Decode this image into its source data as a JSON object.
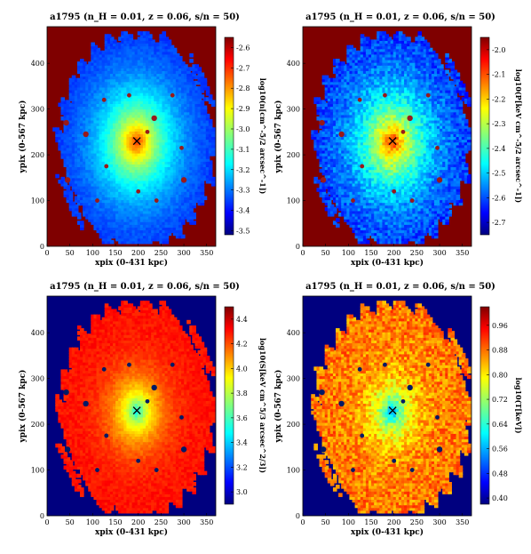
{
  "chart_data": [
    {
      "type": "heatmap",
      "panel": "density",
      "title": "a1795 (n_H = 0.01, z = 0.06, s/n = 50)",
      "xlabel": "xpix (0-431 kpc)",
      "ylabel": "ypix (0-567 kpc)",
      "colorbar_label": "log10(n[cm^-5/2 arcsec^-1])",
      "xlim": [
        0,
        370
      ],
      "ylim": [
        0,
        480
      ],
      "x_ticks": [
        "0",
        "50",
        "100",
        "150",
        "200",
        "250",
        "300",
        "350"
      ],
      "y_ticks": [
        "0",
        "100",
        "200",
        "300",
        "400"
      ],
      "colorbar_range": [
        -3.52,
        -2.55
      ],
      "colorbar_ticks": [
        "-2.6",
        "-2.7",
        "-2.8",
        "-2.9",
        "-3.0",
        "-3.1",
        "-3.2",
        "-3.3",
        "-3.4",
        "-3.5"
      ],
      "center_marker": [
        197,
        230
      ],
      "profile": "peaked",
      "background_color": "#7f0000",
      "point_color": "#991a1a",
      "grid": false
    },
    {
      "type": "heatmap",
      "panel": "pressure",
      "title": "a1795 (n_H = 0.01, z = 0.06, s/n = 50)",
      "xlabel": "xpix (0-431 kpc)",
      "ylabel": "ypix (0-567 kpc)",
      "colorbar_label": "log10(P[keV cm^-5/2 arcsec^-1])",
      "xlim": [
        0,
        370
      ],
      "ylim": [
        0,
        480
      ],
      "x_ticks": [
        "0",
        "50",
        "100",
        "150",
        "200",
        "250",
        "300",
        "350"
      ],
      "y_ticks": [
        "0",
        "100",
        "200",
        "300",
        "400"
      ],
      "colorbar_range": [
        -2.75,
        -1.95
      ],
      "colorbar_ticks": [
        "-2.0",
        "-2.1",
        "-2.2",
        "-2.3",
        "-2.4",
        "-2.5",
        "-2.6",
        "-2.7"
      ],
      "center_marker": [
        197,
        230
      ],
      "profile": "peaked",
      "background_color": "#7f0000",
      "point_color": "#991a1a",
      "grid": false
    },
    {
      "type": "heatmap",
      "panel": "entropy",
      "title": "a1795 (n_H = 0.01, z = 0.06, s/n = 50)",
      "xlabel": "xpix (0-431 kpc)",
      "ylabel": "ypix (0-567 kpc)",
      "colorbar_label": "log10(S[keV cm^5/3 arcsec^2/3])",
      "xlim": [
        0,
        370
      ],
      "ylim": [
        0,
        480
      ],
      "x_ticks": [
        "0",
        "50",
        "100",
        "150",
        "200",
        "250",
        "300",
        "350"
      ],
      "y_ticks": [
        "0",
        "100",
        "200",
        "300",
        "400"
      ],
      "colorbar_range": [
        2.9,
        4.5
      ],
      "colorbar_ticks": [
        "4.4",
        "4.2",
        "4.0",
        "3.8",
        "3.6",
        "3.4",
        "3.2",
        "3.0"
      ],
      "center_marker": [
        197,
        230
      ],
      "profile": "dip",
      "background_color": "#00007f",
      "point_color": "#001a66",
      "grid": false
    },
    {
      "type": "heatmap",
      "panel": "temperature",
      "title": "a1795 (n_H = 0.01, z = 0.06, s/n = 50)",
      "xlabel": "xpix (0-431 kpc)",
      "ylabel": "ypix (0-567 kpc)",
      "colorbar_label": "log10(T[keV])",
      "xlim": [
        0,
        370
      ],
      "ylim": [
        0,
        480
      ],
      "x_ticks": [
        "0",
        "50",
        "100",
        "150",
        "200",
        "250",
        "300",
        "350"
      ],
      "y_ticks": [
        "0",
        "100",
        "200",
        "300",
        "400"
      ],
      "colorbar_range": [
        0.38,
        1.02
      ],
      "colorbar_ticks": [
        "0.96",
        "0.88",
        "0.80",
        "0.72",
        "0.64",
        "0.56",
        "0.48",
        "0.40"
      ],
      "center_marker": [
        197,
        230
      ],
      "profile": "flat-dip",
      "background_color": "#00007f",
      "point_color": "#001a66",
      "grid": false
    }
  ],
  "sources": [
    [
      42,
      270
    ],
    [
      125,
      320
    ],
    [
      180,
      330
    ],
    [
      235,
      280
    ],
    [
      220,
      250
    ],
    [
      295,
      215
    ],
    [
      300,
      145
    ],
    [
      200,
      120
    ],
    [
      130,
      175
    ],
    [
      45,
      145
    ],
    [
      110,
      100
    ],
    [
      240,
      100
    ],
    [
      85,
      245
    ],
    [
      275,
      330
    ]
  ]
}
